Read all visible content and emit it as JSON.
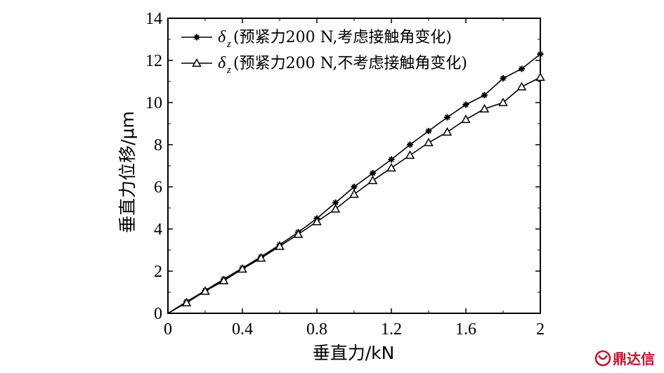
{
  "chart_data": {
    "type": "line",
    "xlabel": "垂直力/kN",
    "ylabel": "垂直力位移/μm",
    "xlim": [
      0,
      2
    ],
    "ylim": [
      0,
      14
    ],
    "x_ticks": [
      "0",
      "0.4",
      "0.8",
      "1.2",
      "1.6",
      "2"
    ],
    "x_tick_values": [
      0,
      0.4,
      0.8,
      1.2,
      1.6,
      2.0
    ],
    "y_ticks": [
      "0",
      "2",
      "4",
      "6",
      "8",
      "10",
      "12",
      "14"
    ],
    "y_tick_values": [
      0,
      2,
      4,
      6,
      8,
      10,
      12,
      14
    ],
    "grid": false,
    "legend_placement": "top-left",
    "series": [
      {
        "name": "(预紧力200 N,考虑接触角变化)",
        "symbol": "δ",
        "subscript": "z",
        "marker": "star",
        "color": "#000000",
        "points": [
          [
            0.1,
            0.55
          ],
          [
            0.2,
            1.08
          ],
          [
            0.3,
            1.62
          ],
          [
            0.4,
            2.15
          ],
          [
            0.5,
            2.68
          ],
          [
            0.6,
            3.25
          ],
          [
            0.7,
            3.85
          ],
          [
            0.8,
            4.5
          ],
          [
            0.9,
            5.25
          ],
          [
            1.0,
            6.0
          ],
          [
            1.1,
            6.65
          ],
          [
            1.2,
            7.3
          ],
          [
            1.3,
            8.0
          ],
          [
            1.4,
            8.65
          ],
          [
            1.5,
            9.3
          ],
          [
            1.6,
            9.9
          ],
          [
            1.7,
            10.35
          ],
          [
            1.8,
            11.15
          ],
          [
            1.9,
            11.6
          ],
          [
            2.0,
            12.3
          ]
        ]
      },
      {
        "name": "(预紧力200 N,不考虑接触角变化)",
        "symbol": "δ",
        "subscript": "z",
        "marker": "triangle",
        "color": "#000000",
        "points": [
          [
            0.1,
            0.5
          ],
          [
            0.2,
            1.05
          ],
          [
            0.3,
            1.55
          ],
          [
            0.4,
            2.1
          ],
          [
            0.5,
            2.62
          ],
          [
            0.6,
            3.18
          ],
          [
            0.7,
            3.75
          ],
          [
            0.8,
            4.35
          ],
          [
            0.9,
            4.95
          ],
          [
            1.0,
            5.65
          ],
          [
            1.1,
            6.3
          ],
          [
            1.2,
            6.9
          ],
          [
            1.3,
            7.5
          ],
          [
            1.4,
            8.1
          ],
          [
            1.5,
            8.6
          ],
          [
            1.6,
            9.2
          ],
          [
            1.7,
            9.7
          ],
          [
            1.8,
            10.0
          ],
          [
            1.9,
            10.75
          ],
          [
            2.0,
            11.2
          ]
        ]
      }
    ]
  },
  "watermark": {
    "text": "鼎达信",
    "color": "#c8102e"
  }
}
